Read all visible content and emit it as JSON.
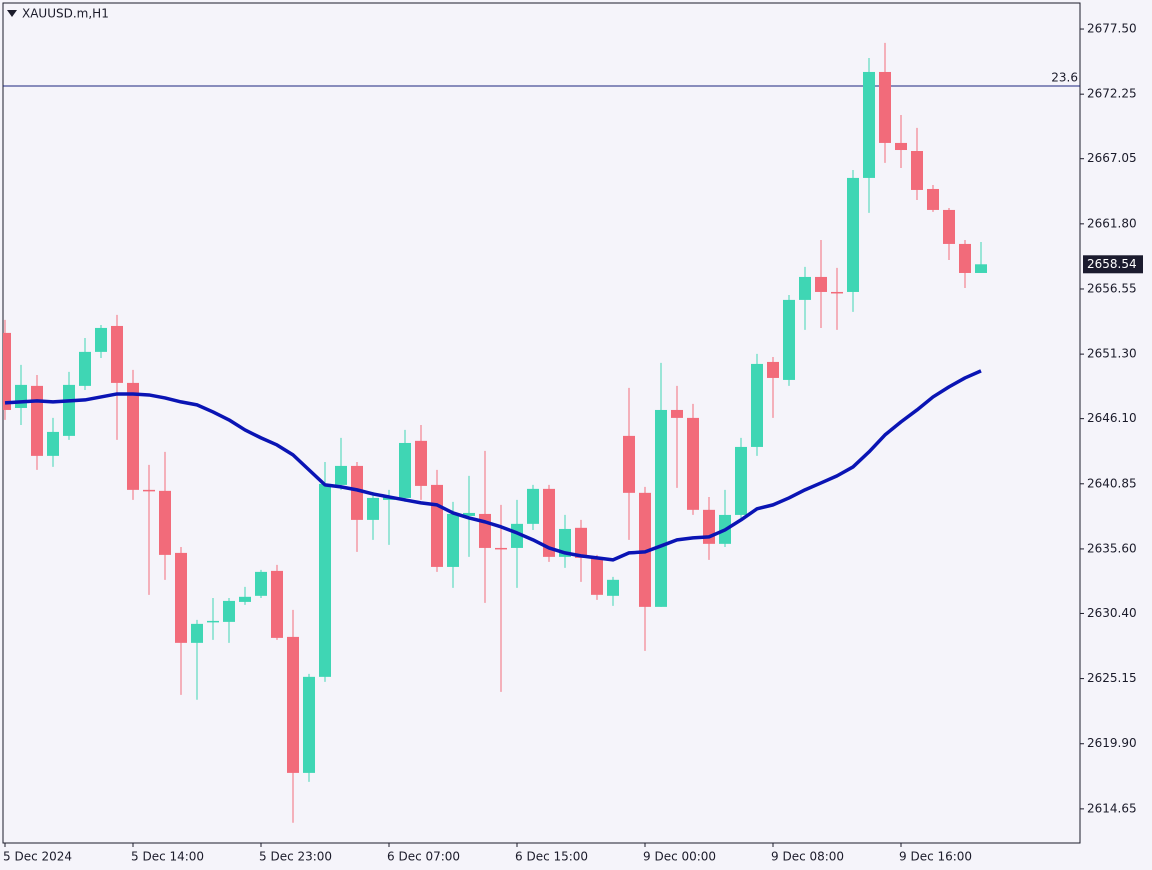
{
  "chart_data": {
    "type": "candlestick",
    "title": "XAUUSD.m,H1",
    "categories": [
      "5 Dec 2024",
      null,
      null,
      null,
      null,
      null,
      null,
      null,
      "5 Dec 14:00",
      null,
      null,
      null,
      null,
      null,
      null,
      null,
      "5 Dec 23:00",
      null,
      null,
      null,
      null,
      null,
      null,
      null,
      "6 Dec 07:00",
      null,
      null,
      null,
      null,
      null,
      null,
      null,
      "6 Dec 15:00",
      null,
      null,
      null,
      null,
      null,
      null,
      null,
      "9 Dec 00:00",
      null,
      null,
      null,
      null,
      null,
      null,
      null,
      "9 Dec 08:00",
      null,
      null,
      null,
      null,
      null,
      null,
      null,
      "9 Dec 16:00",
      null,
      null,
      null,
      null,
      null
    ],
    "open": [
      2653.01,
      2646.96,
      2648.74,
      2643.1,
      2644.71,
      2648.74,
      2651.48,
      2653.57,
      2648.98,
      2640.36,
      2640.28,
      2635.28,
      2628.03,
      2629.72,
      2629.72,
      2631.33,
      2631.82,
      2633.83,
      2628.51,
      2617.55,
      2625.29,
      2640.76,
      2642.29,
      2637.94,
      2639.55,
      2639.71,
      2644.31,
      2640.76,
      2634.15,
      2638.26,
      2638.42,
      2635.68,
      2635.68,
      2637.62,
      2640.44,
      2634.96,
      2637.3,
      2634.88,
      2631.82,
      2644.71,
      2640.12,
      2630.93,
      2646.8,
      2646.16,
      2638.75,
      2636.01,
      2638.34,
      2643.82,
      2650.67,
      2649.22,
      2655.67,
      2657.52,
      2656.31,
      2656.31,
      2665.5,
      2674.04,
      2668.32,
      2667.67,
      2664.61,
      2662.92,
      2660.18,
      2657.84
    ],
    "high": [
      2654.06,
      2650.43,
      2649.62,
      2646.16,
      2649.87,
      2652.6,
      2653.65,
      2654.46,
      2650.03,
      2642.37,
      2643.42,
      2635.76,
      2629.88,
      2631.65,
      2631.65,
      2632.54,
      2633.91,
      2634.31,
      2630.69,
      2625.53,
      2642.61,
      2644.55,
      2642.61,
      2640.2,
      2640.36,
      2645.19,
      2645.59,
      2641.97,
      2639.39,
      2641.49,
      2643.5,
      2639.15,
      2639.55,
      2640.76,
      2640.76,
      2638.34,
      2637.94,
      2635.12,
      2633.35,
      2648.58,
      2640.6,
      2650.59,
      2648.74,
      2647.29,
      2639.79,
      2640.36,
      2644.55,
      2651.32,
      2651.07,
      2656.07,
      2658.33,
      2660.5,
      2658.25,
      2666.14,
      2675.17,
      2676.38,
      2670.57,
      2669.53,
      2664.93,
      2663.08,
      2660.5,
      2660.34
    ],
    "low": [
      2646.0,
      2645.59,
      2641.97,
      2642.21,
      2644.39,
      2648.41,
      2650.99,
      2644.39,
      2639.55,
      2631.9,
      2633.11,
      2623.84,
      2623.44,
      2628.27,
      2628.03,
      2631.09,
      2631.65,
      2628.27,
      2613.53,
      2616.83,
      2624.89,
      2640.36,
      2635.36,
      2636.33,
      2635.93,
      2639.39,
      2639.55,
      2633.75,
      2632.46,
      2634.96,
      2631.25,
      2624.08,
      2632.46,
      2637.13,
      2634.56,
      2634.07,
      2632.94,
      2631.49,
      2631.01,
      2636.33,
      2627.38,
      2630.93,
      2640.52,
      2638.34,
      2634.72,
      2635.76,
      2637.94,
      2643.1,
      2646.16,
      2648.74,
      2653.25,
      2653.41,
      2653.25,
      2654.7,
      2662.68,
      2666.71,
      2666.3,
      2663.72,
      2662.76,
      2658.89,
      2656.63,
      2657.84
    ],
    "close": [
      2646.8,
      2648.82,
      2643.1,
      2645.03,
      2648.82,
      2651.48,
      2653.41,
      2648.98,
      2640.36,
      2640.28,
      2635.12,
      2628.03,
      2629.56,
      2629.8,
      2631.41,
      2631.74,
      2633.75,
      2628.43,
      2617.55,
      2625.29,
      2640.84,
      2642.29,
      2637.94,
      2639.71,
      2639.79,
      2644.14,
      2640.68,
      2634.15,
      2638.42,
      2638.5,
      2635.68,
      2635.6,
      2637.62,
      2640.44,
      2634.96,
      2637.21,
      2634.88,
      2631.9,
      2633.11,
      2640.12,
      2630.93,
      2646.8,
      2646.16,
      2638.75,
      2636.01,
      2638.34,
      2643.82,
      2650.51,
      2649.38,
      2655.67,
      2657.52,
      2656.31,
      2656.23,
      2665.5,
      2674.04,
      2668.32,
      2667.75,
      2664.53,
      2662.92,
      2660.18,
      2657.84,
      2658.54
    ],
    "up_color": "#3fd6b4",
    "down_color": "#f26b7a",
    "ma": {
      "color": "#0a14b4",
      "values": [
        2647.37,
        2647.45,
        2647.53,
        2647.45,
        2647.53,
        2647.61,
        2647.85,
        2648.09,
        2648.09,
        2648.01,
        2647.77,
        2647.45,
        2647.21,
        2646.64,
        2646.0,
        2645.19,
        2644.55,
        2643.98,
        2643.18,
        2641.97,
        2640.76,
        2640.6,
        2640.36,
        2640.03,
        2639.79,
        2639.55,
        2639.31,
        2639.15,
        2638.5,
        2638.1,
        2637.78,
        2637.38,
        2636.89,
        2636.33,
        2635.68,
        2635.28,
        2635.04,
        2634.88,
        2634.72,
        2635.28,
        2635.36,
        2635.84,
        2636.33,
        2636.49,
        2636.57,
        2637.13,
        2637.94,
        2638.83,
        2639.15,
        2639.71,
        2640.36,
        2640.92,
        2641.49,
        2642.21,
        2643.42,
        2644.79,
        2645.84,
        2646.8,
        2647.85,
        2648.66,
        2649.38,
        2649.95
      ]
    },
    "hline": {
      "value": 2672.91,
      "label": "23.6",
      "color": "#1a237e"
    },
    "last_price": 2658.54,
    "ylim": [
      2611.9,
      2679.84
    ],
    "yticks": [
      {
        "value": 2677.5,
        "label": "2677.50"
      },
      2672.25,
      2667.05,
      {
        "value": 2661.8,
        "label": "2661.80"
      },
      2656.55,
      {
        "value": 2651.3,
        "label": "2651.30"
      },
      {
        "value": 2646.1,
        "label": "2646.10"
      },
      2640.85,
      {
        "value": 2635.6,
        "label": "2635.60"
      },
      {
        "value": 2630.4,
        "label": "2630.40"
      },
      2625.15,
      {
        "value": 2619.9,
        "label": "2619.90"
      },
      2614.65
    ]
  }
}
